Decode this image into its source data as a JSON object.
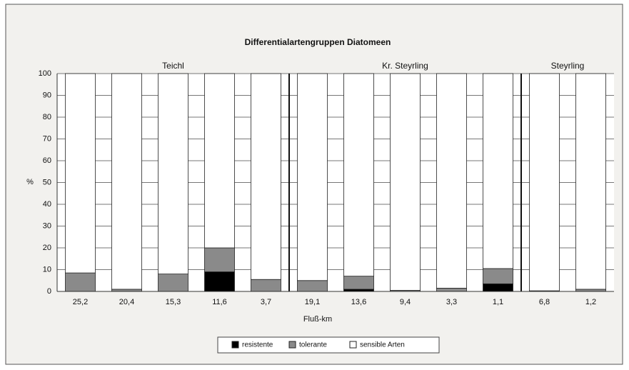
{
  "chart_data": {
    "type": "stacked_bar",
    "title": "Differentialartengruppen Diatomeen",
    "ylabel": "%",
    "xlabel": "Fluß-km",
    "categories": [
      "25,2",
      "20,4",
      "15,3",
      "11,6",
      "3,7",
      "19,1",
      "13,6",
      "9,4",
      "3,3",
      "1,1",
      "6,8",
      "1,2"
    ],
    "groups": [
      {
        "label": "Teichl",
        "count": 5
      },
      {
        "label": "Kr. Steyrling",
        "count": 5
      },
      {
        "label": "Steyrling",
        "count": 2
      }
    ],
    "series": [
      {
        "name": "resistente",
        "color": "#000000",
        "values": [
          0,
          0,
          0,
          9,
          0,
          0,
          1,
          0,
          0,
          3.5,
          0,
          0
        ]
      },
      {
        "name": "tolerante",
        "color": "#8a8a8a",
        "values": [
          8.5,
          1,
          8,
          11,
          5.5,
          5,
          6,
          0.5,
          1.5,
          7,
          0.3,
          1
        ]
      },
      {
        "name": "sensible Arten",
        "color": "#ffffff",
        "values": [
          91.5,
          99,
          92,
          80,
          94.5,
          95,
          93,
          99.5,
          98.5,
          89.5,
          99.7,
          99
        ]
      }
    ],
    "ylim": [
      0,
      100
    ],
    "yticks": [
      0,
      10,
      20,
      30,
      40,
      50,
      60,
      70,
      80,
      90,
      100
    ],
    "grid": true,
    "legend": "bottom"
  }
}
